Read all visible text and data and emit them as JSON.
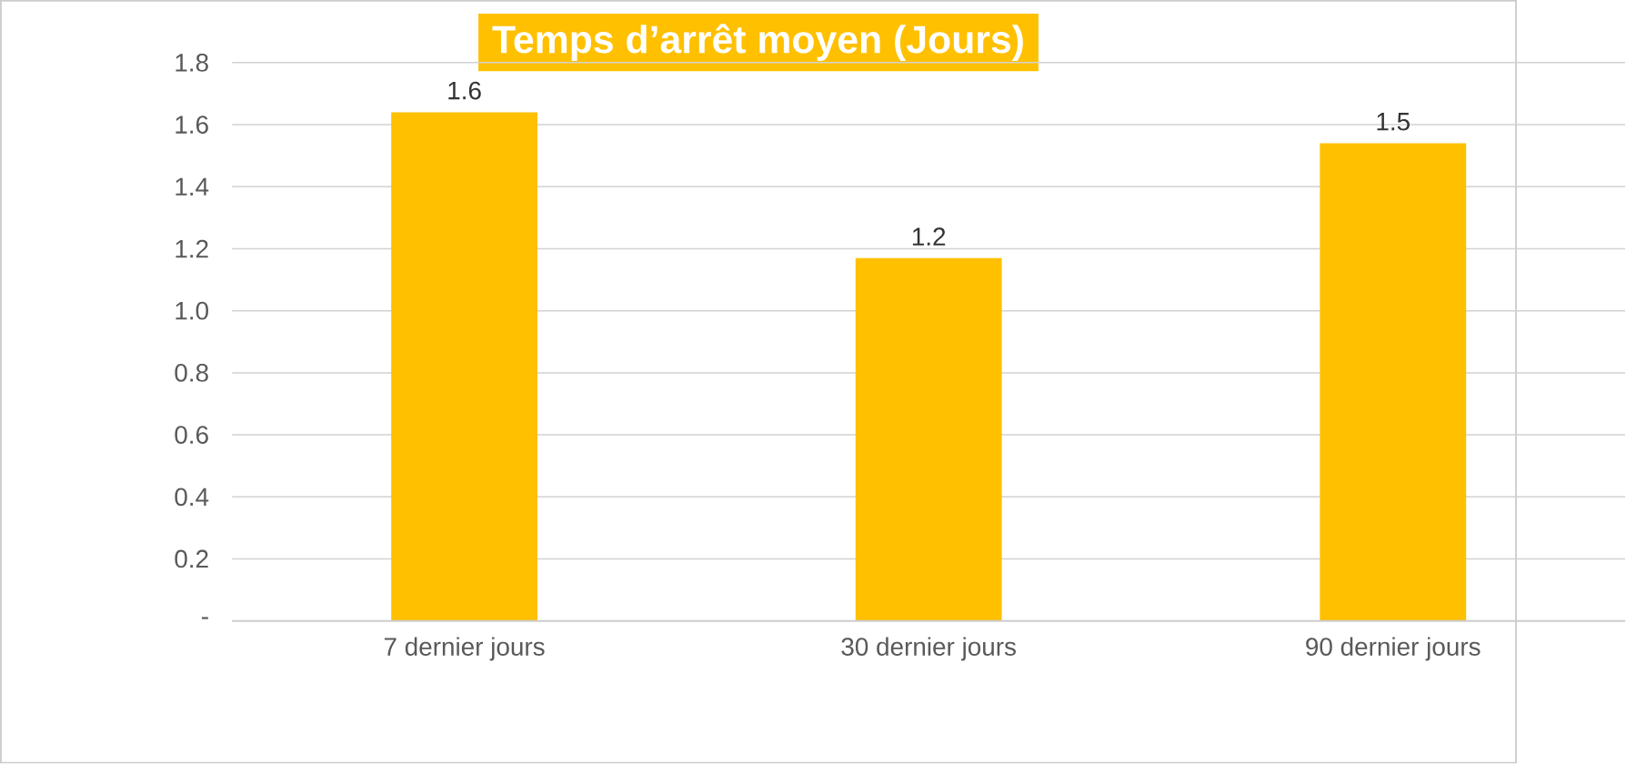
{
  "chart_data": {
    "type": "bar",
    "title": "Temps d’arrêt moyen (Jours)",
    "categories": [
      "7 dernier jours",
      "30 dernier jours",
      "90 dernier jours"
    ],
    "values": [
      1.64,
      1.17,
      1.54
    ],
    "value_labels": [
      "1.6",
      "1.2",
      "1.5"
    ],
    "color": "#ffc000",
    "ylim": [
      0,
      1.8
    ],
    "yticks": [
      {
        "value": 0,
        "label": "-"
      },
      0.2,
      0.4,
      0.6,
      0.8,
      {
        "value": 1,
        "label": "1.0"
      },
      1.2,
      1.4,
      1.6,
      1.8
    ],
    "grid": "y"
  }
}
